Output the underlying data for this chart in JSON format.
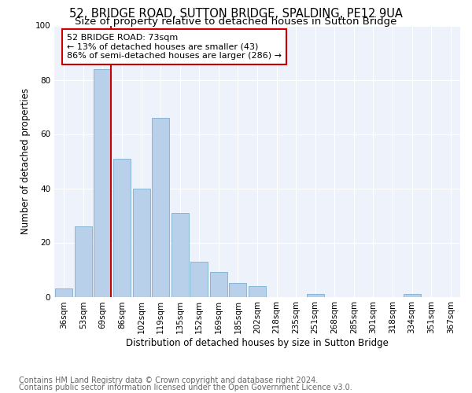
{
  "title": "52, BRIDGE ROAD, SUTTON BRIDGE, SPALDING, PE12 9UA",
  "subtitle": "Size of property relative to detached houses in Sutton Bridge",
  "xlabel": "Distribution of detached houses by size in Sutton Bridge",
  "ylabel": "Number of detached properties",
  "footnote1": "Contains HM Land Registry data © Crown copyright and database right 2024.",
  "footnote2": "Contains public sector information licensed under the Open Government Licence v3.0.",
  "annotation_line1": "52 BRIDGE ROAD: 73sqm",
  "annotation_line2": "← 13% of detached houses are smaller (43)",
  "annotation_line3": "86% of semi-detached houses are larger (286) →",
  "categories": [
    "36sqm",
    "53sqm",
    "69sqm",
    "86sqm",
    "102sqm",
    "119sqm",
    "135sqm",
    "152sqm",
    "169sqm",
    "185sqm",
    "202sqm",
    "218sqm",
    "235sqm",
    "251sqm",
    "268sqm",
    "285sqm",
    "301sqm",
    "318sqm",
    "334sqm",
    "351sqm",
    "367sqm"
  ],
  "values": [
    3,
    26,
    84,
    51,
    40,
    66,
    31,
    13,
    9,
    5,
    4,
    0,
    0,
    1,
    0,
    0,
    0,
    0,
    1,
    0,
    0
  ],
  "bar_color": "#b8d0ea",
  "bar_edge_color": "#7aafd4",
  "vline_x_index": 2,
  "vline_color": "#cc0000",
  "annotation_box_color": "#cc0000",
  "background_color": "#eef2fb",
  "ylim": [
    0,
    100
  ],
  "title_fontsize": 10.5,
  "subtitle_fontsize": 9.5,
  "axis_label_fontsize": 8.5,
  "tick_fontsize": 7.5,
  "annotation_fontsize": 8,
  "footnote_fontsize": 7
}
